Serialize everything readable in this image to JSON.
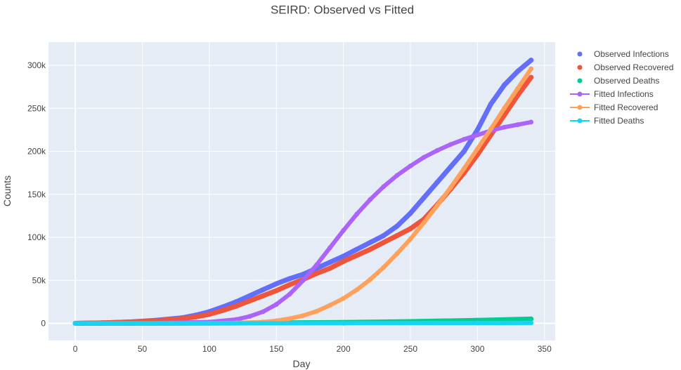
{
  "chart_data": {
    "type": "line",
    "title": "SEIRD: Observed vs Fitted",
    "xlabel": "Day",
    "ylabel": "Counts",
    "xlim": [
      -20,
      358
    ],
    "ylim": [
      -20000,
      327000
    ],
    "xticks": [
      0,
      50,
      100,
      150,
      200,
      250,
      300,
      350
    ],
    "xtick_labels": [
      "0",
      "50",
      "100",
      "150",
      "200",
      "250",
      "300",
      "350"
    ],
    "yticks": [
      0,
      50000,
      100000,
      150000,
      200000,
      250000,
      300000
    ],
    "ytick_labels": [
      "0",
      "50k",
      "100k",
      "150k",
      "200k",
      "250k",
      "300k"
    ],
    "grid": true,
    "legend_position": "top-right",
    "series": [
      {
        "name": "Observed Infections",
        "mode": "markers",
        "color": "#636efa",
        "x": [
          0,
          20,
          40,
          60,
          80,
          90,
          100,
          110,
          120,
          130,
          140,
          150,
          160,
          170,
          180,
          190,
          200,
          210,
          220,
          230,
          240,
          250,
          260,
          270,
          280,
          290,
          300,
          310,
          320,
          330,
          340
        ],
        "y": [
          0,
          500,
          1500,
          3500,
          6500,
          9500,
          13500,
          19000,
          25000,
          32000,
          39000,
          46000,
          52000,
          57000,
          64000,
          71000,
          78000,
          86000,
          94000,
          102000,
          113000,
          128000,
          146000,
          164000,
          182000,
          200000,
          225000,
          255000,
          277000,
          293000,
          306000
        ]
      },
      {
        "name": "Observed Recovered",
        "mode": "markers",
        "color": "#ef553b",
        "x": [
          0,
          20,
          40,
          60,
          80,
          90,
          100,
          110,
          120,
          130,
          140,
          150,
          160,
          170,
          180,
          190,
          200,
          210,
          220,
          230,
          240,
          250,
          260,
          270,
          280,
          290,
          300,
          310,
          320,
          330,
          340
        ],
        "y": [
          0,
          500,
          1500,
          3000,
          5500,
          7500,
          10500,
          15000,
          20000,
          26000,
          32000,
          38000,
          45000,
          51000,
          58000,
          64000,
          72000,
          79000,
          86000,
          94000,
          102000,
          110000,
          121000,
          138000,
          156000,
          175000,
          196000,
          219000,
          242000,
          265000,
          286000
        ]
      },
      {
        "name": "Observed Deaths",
        "mode": "markers",
        "color": "#00cc96",
        "x": [
          0,
          100,
          150,
          200,
          250,
          300,
          340
        ],
        "y": [
          0,
          200,
          500,
          1000,
          2000,
          3500,
          5000
        ]
      },
      {
        "name": "Fitted Infections",
        "mode": "lines+markers",
        "color": "#ab63fa",
        "x": [
          0,
          50,
          100,
          120,
          130,
          140,
          150,
          160,
          170,
          180,
          190,
          200,
          210,
          220,
          230,
          240,
          250,
          260,
          270,
          280,
          290,
          300,
          310,
          320,
          330,
          340
        ],
        "y": [
          0,
          200,
          1500,
          4500,
          8000,
          13500,
          22000,
          34000,
          50000,
          68000,
          88000,
          108000,
          127000,
          144000,
          159000,
          172000,
          183000,
          193000,
          201000,
          208000,
          214000,
          219000,
          224000,
          228000,
          231000,
          234000
        ]
      },
      {
        "name": "Fitted Recovered",
        "mode": "lines+markers",
        "color": "#ffa15a",
        "x": [
          0,
          100,
          120,
          140,
          150,
          160,
          170,
          180,
          190,
          200,
          210,
          220,
          230,
          240,
          250,
          260,
          270,
          280,
          290,
          300,
          310,
          320,
          330,
          340
        ],
        "y": [
          0,
          100,
          500,
          1500,
          3000,
          5500,
          9000,
          14000,
          21000,
          29000,
          39000,
          51000,
          65000,
          81000,
          98000,
          117000,
          137000,
          158000,
          180000,
          203000,
          226000,
          250000,
          273000,
          296000
        ]
      },
      {
        "name": "Fitted Deaths",
        "mode": "lines+markers",
        "color": "#19d3f3",
        "x": [
          0,
          100,
          200,
          300,
          340
        ],
        "y": [
          0,
          30,
          150,
          350,
          500
        ]
      }
    ]
  }
}
